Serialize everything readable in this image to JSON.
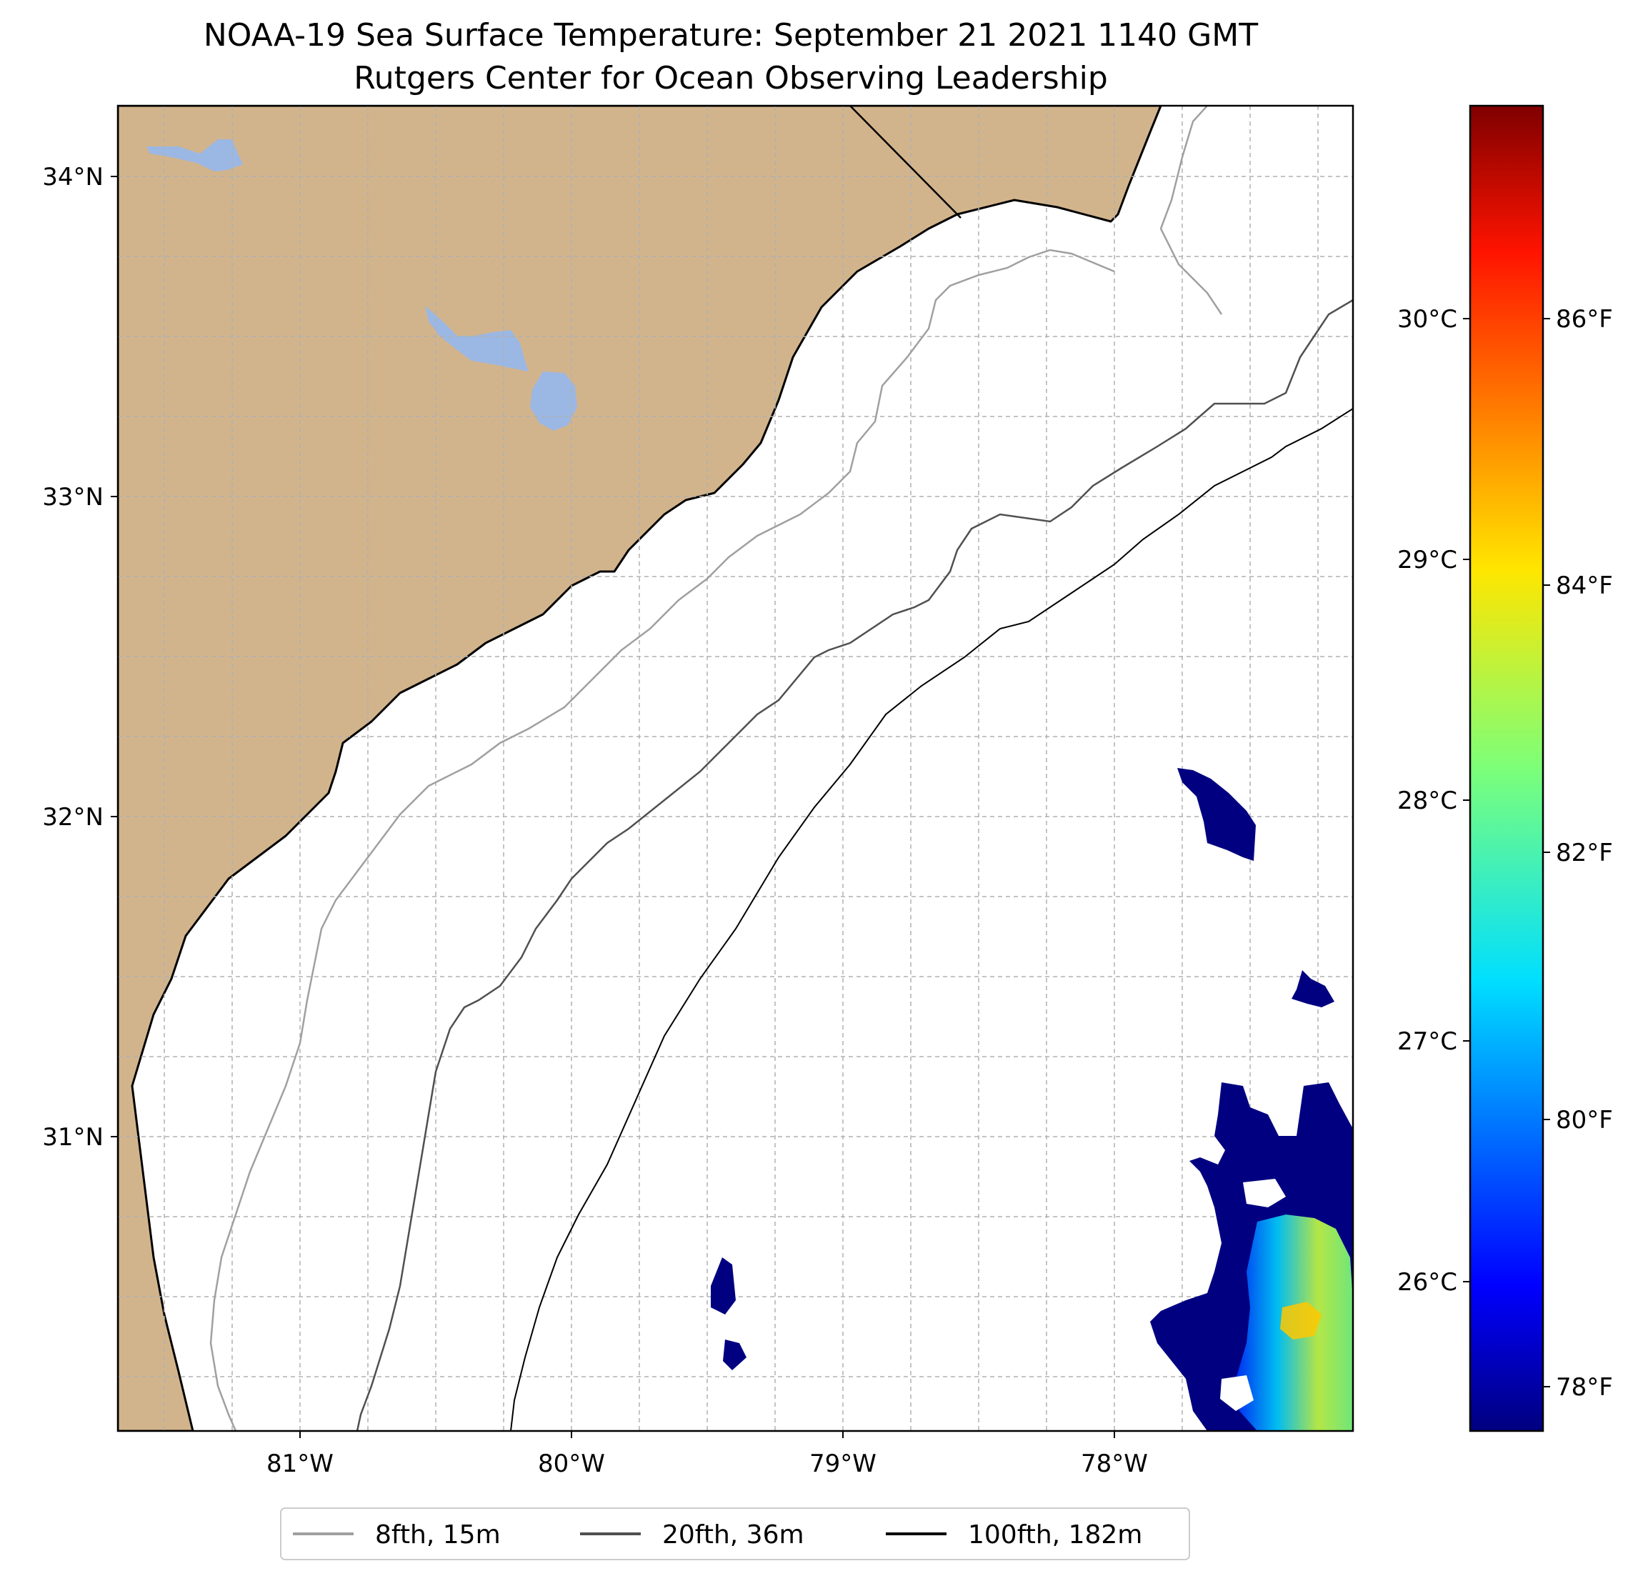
{
  "title": {
    "line1": "NOAA-19 Sea Surface Temperature: September 21 2021 1140 GMT",
    "line2": "Rutgers Center for Ocean Observing Leadership"
  },
  "colors": {
    "land": "#d2b48c",
    "lakes": "#9bb7e4",
    "coastline": "#000000",
    "grid": "#b0b0b0",
    "isobath_8fth": "#a0a0a0",
    "isobath_20fth": "#505050",
    "isobath_100fth": "#000000",
    "sst_cold": "#000080"
  },
  "chart_data": {
    "type": "map",
    "projection": "plate carree",
    "lon_range": [
      -81.67,
      -77.1
    ],
    "lat_range": [
      30.08,
      34.22
    ],
    "x_ticks": [
      "81°W",
      "80°W",
      "79°W",
      "78°W"
    ],
    "y_ticks": [
      "34°N",
      "33°N",
      "32°N",
      "31°N"
    ],
    "grid": true,
    "legend": {
      "placement": "bottom-center",
      "entries": [
        {
          "label": "8fth, 15m",
          "color": "#a0a0a0"
        },
        {
          "label": "20fth, 36m",
          "color": "#505050"
        },
        {
          "label": "100fth, 182m",
          "color": "#000000"
        }
      ]
    },
    "colorbar": {
      "colormap": "jet",
      "range_c": [
        25.4,
        31.0
      ],
      "celsius_ticks": [
        30,
        29,
        28,
        27,
        26
      ],
      "celsius_labels": [
        "30°C",
        "29°C",
        "28°C",
        "27°C",
        "26°C"
      ],
      "fahrenheit_ticks": [
        86,
        84,
        82,
        80,
        78
      ],
      "fahrenheit_labels": [
        "86°F",
        "84°F",
        "82°F",
        "80°F",
        "78°F"
      ]
    },
    "sst_coverage": "Only small satellite SST patches in the eastern/southeastern part of the map (about 25.5–28.5 °C); the rest is clouded / no data."
  }
}
